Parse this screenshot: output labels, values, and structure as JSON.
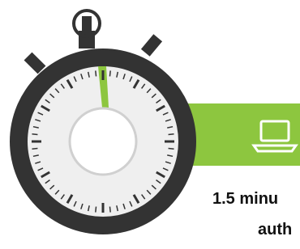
{
  "caption": {
    "line1": "1.5 minu",
    "line2": "auth"
  }
}
